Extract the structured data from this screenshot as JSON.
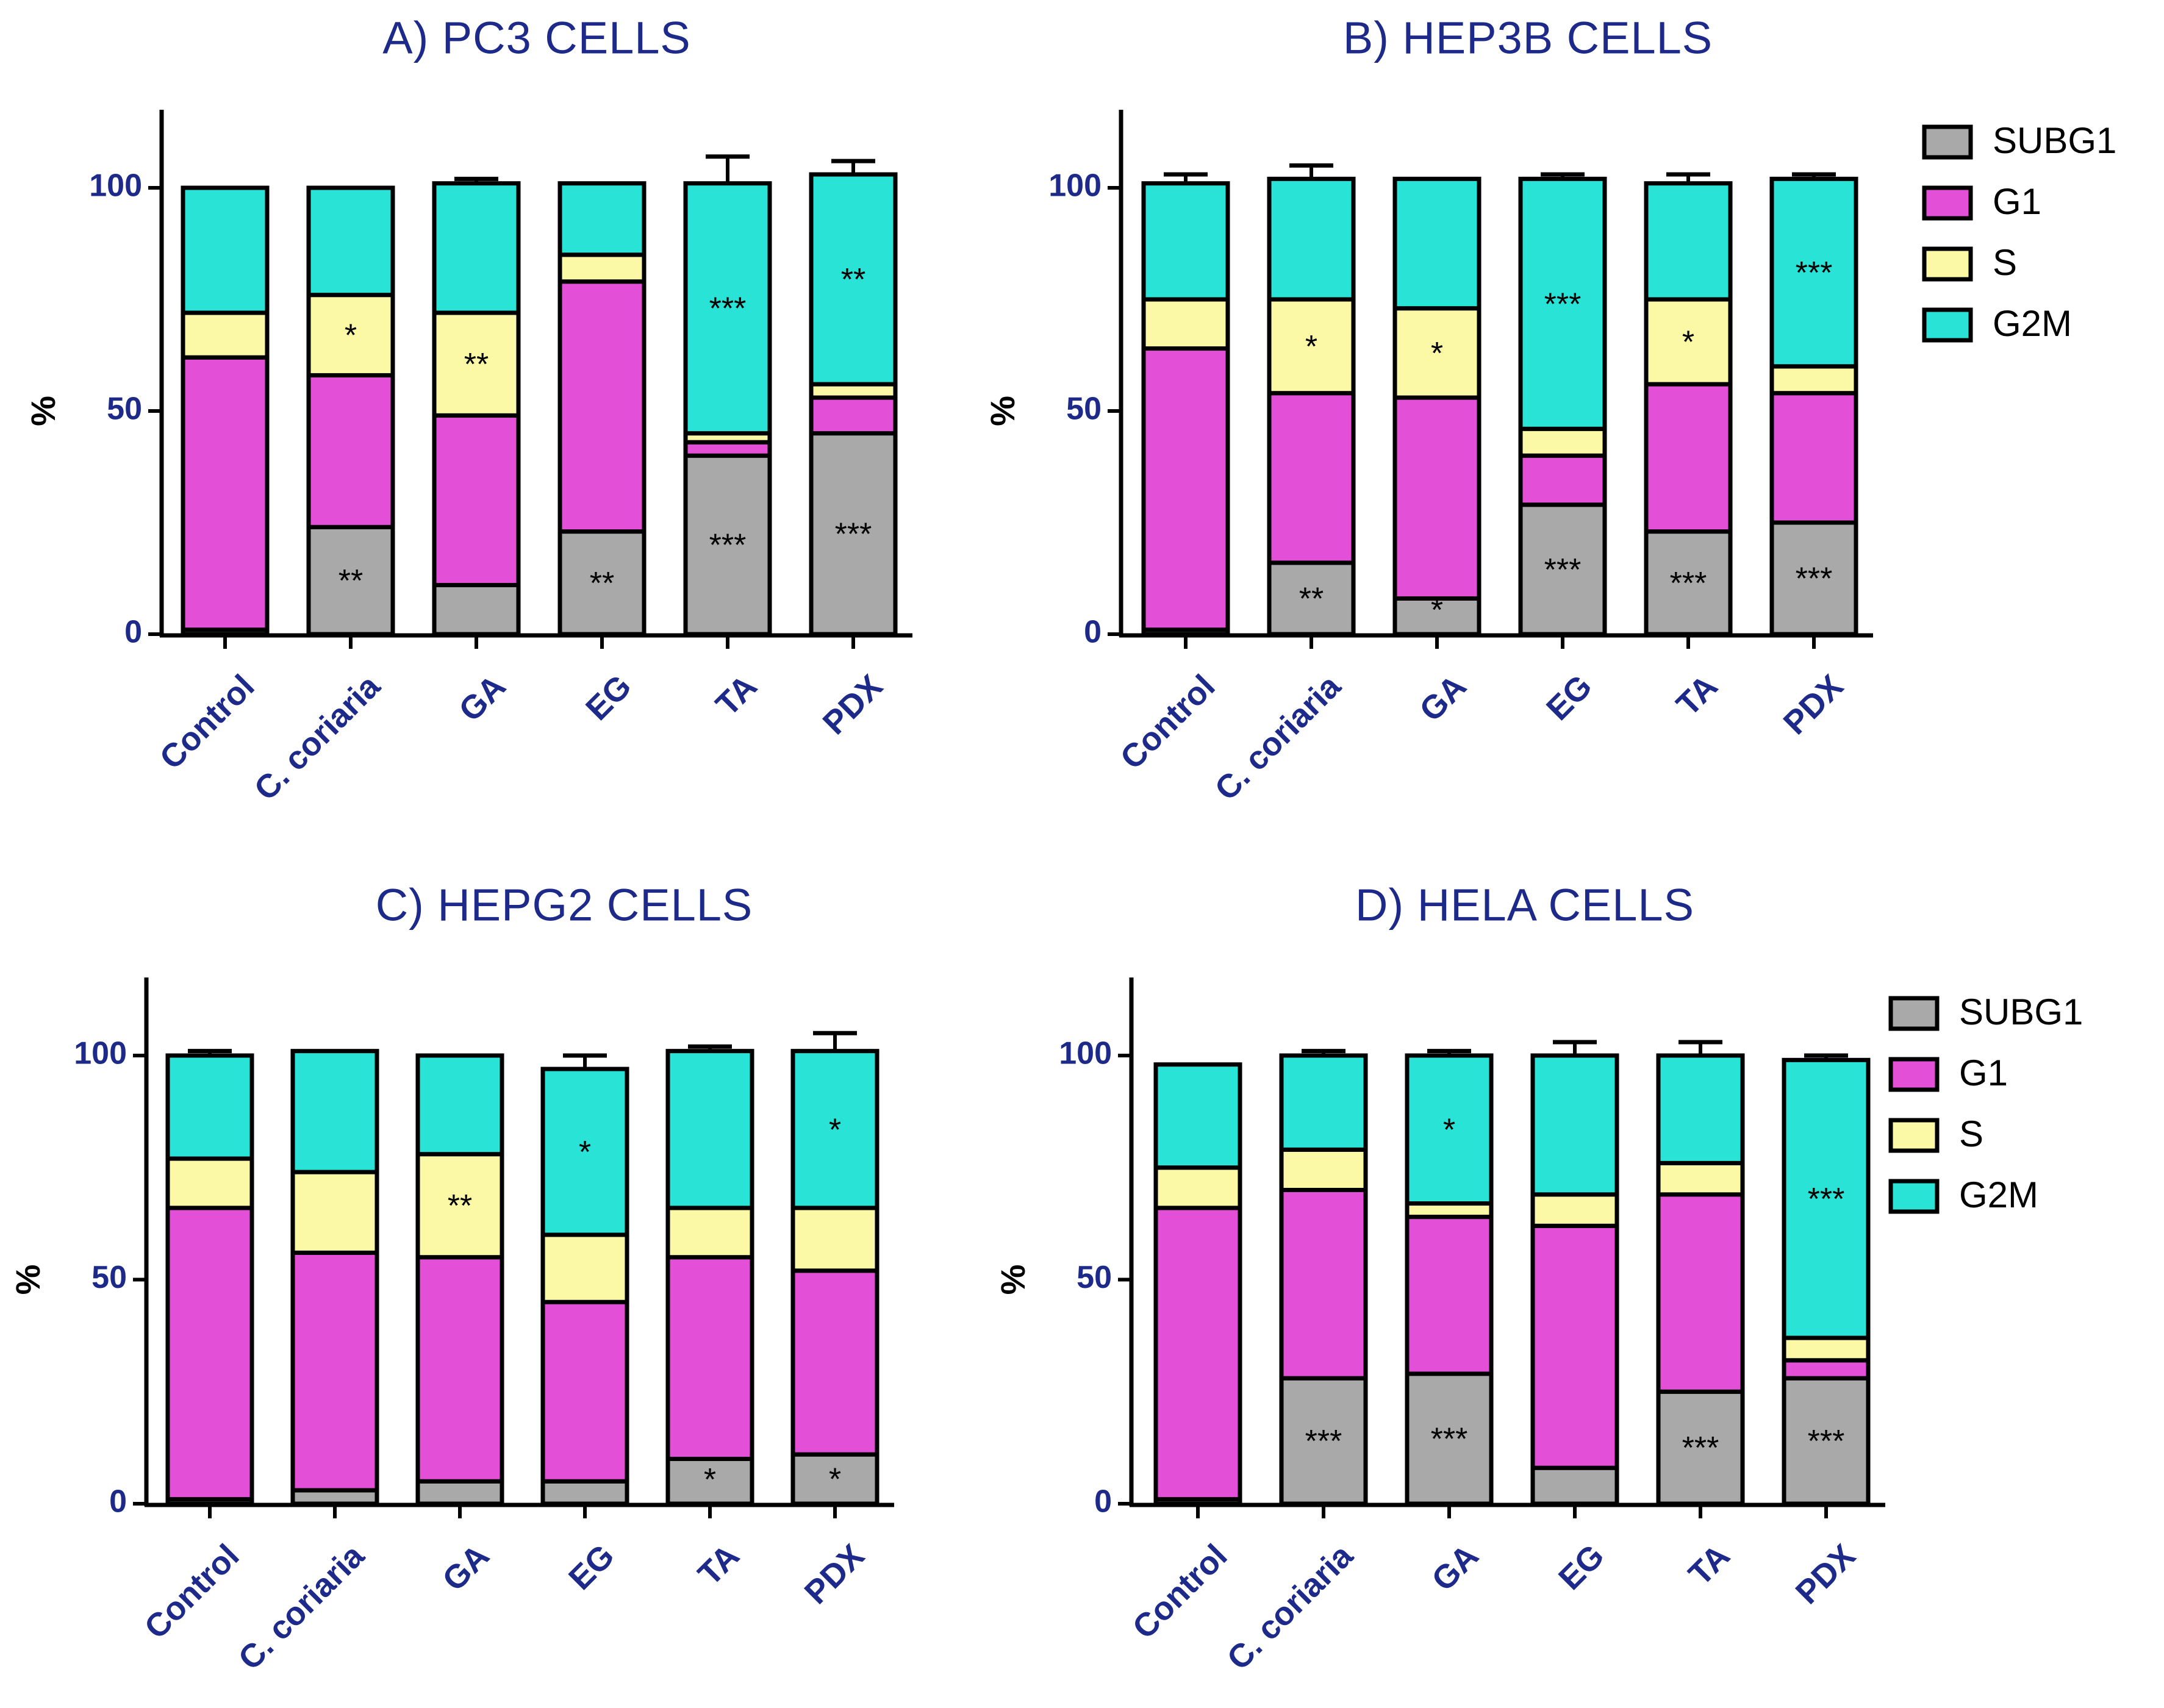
{
  "chart_data": [
    {
      "type": "bar",
      "stacked": true,
      "title": "A) PC3 CELLS",
      "ylabel": "%",
      "ylim": [
        0,
        120
      ],
      "yticks": [
        0,
        50,
        100
      ],
      "categories": [
        "Control",
        "C. coriaria",
        "GA",
        "EG",
        "TA",
        "PDX"
      ],
      "series": [
        {
          "name": "SUBG1",
          "values": [
            1,
            24,
            11,
            23,
            40,
            45
          ]
        },
        {
          "name": "G1",
          "values": [
            61,
            34,
            38,
            56,
            3,
            8
          ]
        },
        {
          "name": "S",
          "values": [
            10,
            18,
            23,
            6,
            2,
            3
          ]
        },
        {
          "name": "G2M",
          "values": [
            28,
            24,
            29,
            16,
            56,
            47
          ]
        }
      ],
      "error_top": [
        0,
        0,
        1,
        0,
        6,
        3
      ],
      "annotations": [
        {
          "category": "C. coriaria",
          "series": "SUBG1",
          "text": "**"
        },
        {
          "category": "C. coriaria",
          "series": "S",
          "text": "*"
        },
        {
          "category": "GA",
          "series": "S",
          "text": "**"
        },
        {
          "category": "EG",
          "series": "SUBG1",
          "text": "**"
        },
        {
          "category": "TA",
          "series": "SUBG1",
          "text": "***"
        },
        {
          "category": "TA",
          "series": "G2M",
          "text": "***"
        },
        {
          "category": "PDX",
          "series": "SUBG1",
          "text": "***"
        },
        {
          "category": "PDX",
          "series": "G2M",
          "text": "**"
        }
      ]
    },
    {
      "type": "bar",
      "stacked": true,
      "title": "B) HEP3B CELLS",
      "ylabel": "%",
      "ylim": [
        0,
        120
      ],
      "yticks": [
        0,
        50,
        100
      ],
      "categories": [
        "Control",
        "C. coriaria",
        "GA",
        "EG",
        "TA",
        "PDX"
      ],
      "series": [
        {
          "name": "SUBG1",
          "values": [
            1,
            16,
            8,
            29,
            23,
            25
          ]
        },
        {
          "name": "G1",
          "values": [
            63,
            38,
            45,
            11,
            33,
            29
          ]
        },
        {
          "name": "S",
          "values": [
            11,
            21,
            20,
            6,
            19,
            6
          ]
        },
        {
          "name": "G2M",
          "values": [
            26,
            27,
            29,
            56,
            26,
            42
          ]
        }
      ],
      "error_top": [
        2,
        3,
        0,
        1,
        2,
        1
      ],
      "annotations": [
        {
          "category": "C. coriaria",
          "series": "SUBG1",
          "text": "**"
        },
        {
          "category": "C. coriaria",
          "series": "S",
          "text": "*"
        },
        {
          "category": "GA",
          "series": "SUBG1",
          "text": "*"
        },
        {
          "category": "GA",
          "series": "S",
          "text": "*"
        },
        {
          "category": "EG",
          "series": "SUBG1",
          "text": "***"
        },
        {
          "category": "EG",
          "series": "G2M",
          "text": "***"
        },
        {
          "category": "TA",
          "series": "SUBG1",
          "text": "***"
        },
        {
          "category": "TA",
          "series": "S",
          "text": "*"
        },
        {
          "category": "PDX",
          "series": "SUBG1",
          "text": "***"
        },
        {
          "category": "PDX",
          "series": "G2M",
          "text": "***"
        }
      ],
      "legend": [
        "SUBG1",
        "G1",
        "S",
        "G2M"
      ]
    },
    {
      "type": "bar",
      "stacked": true,
      "title": "C) HEPG2 CELLS",
      "ylabel": "%",
      "ylim": [
        0,
        120
      ],
      "yticks": [
        0,
        50,
        100
      ],
      "categories": [
        "Control",
        "C. coriaria",
        "GA",
        "EG",
        "TA",
        "PDX"
      ],
      "series": [
        {
          "name": "SUBG1",
          "values": [
            1,
            3,
            5,
            5,
            10,
            11
          ]
        },
        {
          "name": "G1",
          "values": [
            65,
            53,
            50,
            40,
            45,
            41
          ]
        },
        {
          "name": "S",
          "values": [
            11,
            18,
            23,
            15,
            11,
            14
          ]
        },
        {
          "name": "G2M",
          "values": [
            23,
            27,
            22,
            37,
            35,
            35
          ]
        }
      ],
      "error_top": [
        1,
        0,
        0,
        3,
        1,
        4
      ],
      "annotations": [
        {
          "category": "GA",
          "series": "S",
          "text": "**"
        },
        {
          "category": "EG",
          "series": "G2M",
          "text": "*"
        },
        {
          "category": "TA",
          "series": "SUBG1",
          "text": "*"
        },
        {
          "category": "PDX",
          "series": "SUBG1",
          "text": "*"
        },
        {
          "category": "PDX",
          "series": "G2M",
          "text": "*"
        }
      ]
    },
    {
      "type": "bar",
      "stacked": true,
      "title": "D) HELA CELLS",
      "ylabel": "%",
      "ylim": [
        0,
        120
      ],
      "yticks": [
        0,
        50,
        100
      ],
      "categories": [
        "Control",
        "C. coriaria",
        "GA",
        "EG",
        "TA",
        "PDX"
      ],
      "series": [
        {
          "name": "SUBG1",
          "values": [
            1,
            28,
            29,
            8,
            25,
            28
          ]
        },
        {
          "name": "G1",
          "values": [
            65,
            42,
            35,
            54,
            44,
            4
          ]
        },
        {
          "name": "S",
          "values": [
            9,
            9,
            3,
            7,
            7,
            5
          ]
        },
        {
          "name": "G2M",
          "values": [
            23,
            21,
            33,
            31,
            24,
            62
          ]
        }
      ],
      "error_top": [
        0,
        1,
        1,
        3,
        3,
        1
      ],
      "annotations": [
        {
          "category": "C. coriaria",
          "series": "SUBG1",
          "text": "***"
        },
        {
          "category": "GA",
          "series": "SUBG1",
          "text": "***"
        },
        {
          "category": "GA",
          "series": "G2M",
          "text": "*"
        },
        {
          "category": "TA",
          "series": "SUBG1",
          "text": "***"
        },
        {
          "category": "PDX",
          "series": "SUBG1",
          "text": "***"
        },
        {
          "category": "PDX",
          "series": "G2M",
          "text": "***"
        }
      ],
      "legend": [
        "SUBG1",
        "G1",
        "S",
        "G2M"
      ]
    }
  ],
  "colors": {
    "SUBG1": "#a9a9a9",
    "G1": "#e34fd6",
    "S": "#fbf8a6",
    "G2M": "#29e4d6",
    "outline": "#000000",
    "title": "#1d2a8a",
    "tick": "#1d2a8a"
  }
}
